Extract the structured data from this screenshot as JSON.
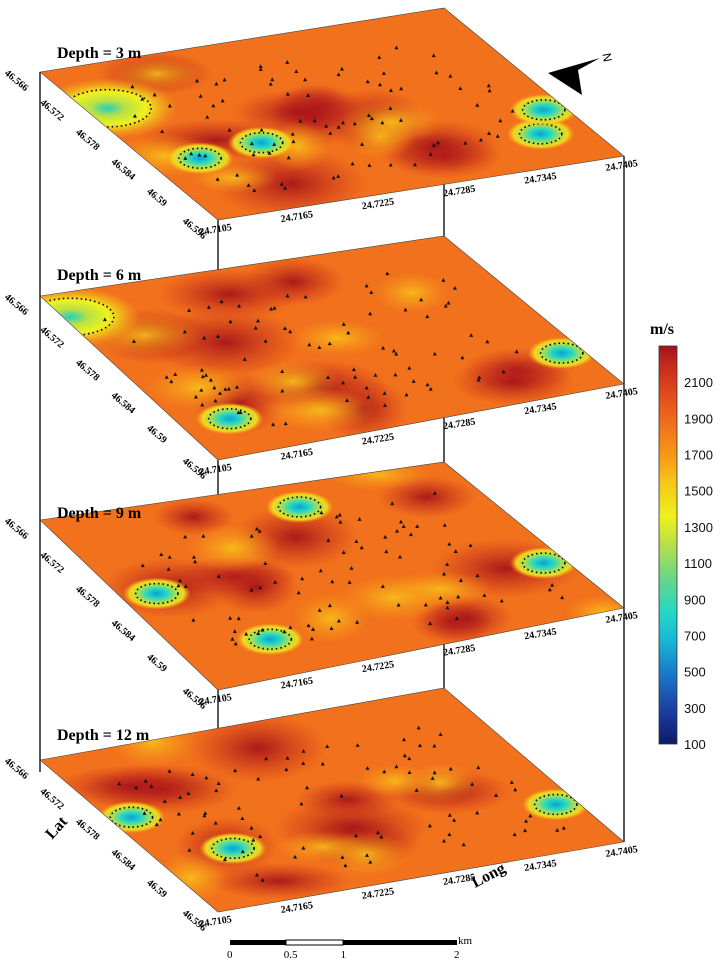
{
  "chart_data": {
    "type": "heatmap",
    "title": "",
    "variable_unit": "m/s",
    "colorbar": {
      "title": "m/s",
      "ticks": [
        2100,
        1900,
        1700,
        1500,
        1300,
        1100,
        900,
        700,
        500,
        300,
        100
      ],
      "range": [
        100,
        2300
      ],
      "colors": [
        "#0b1a6b",
        "#1b3c9e",
        "#1a74c8",
        "#19b6d6",
        "#22d8c6",
        "#64d68d",
        "#b5e04a",
        "#eef21c",
        "#f6c51a",
        "#f79b17",
        "#f2711c",
        "#e14a1c",
        "#c72a1c",
        "#a0141a"
      ]
    },
    "xlabel": "Long",
    "ylabel": "Lat",
    "x_ticks": [
      "24.7105",
      "24.7165",
      "24.7225",
      "24.7285",
      "24.7345",
      "24.7405"
    ],
    "y_ticks": [
      "46.566",
      "46.572",
      "46.578",
      "46.584",
      "46.59",
      "46.596"
    ],
    "layers": [
      {
        "label": "Depth = 3 m",
        "depth_m": 3,
        "low_velocity_zones": [
          {
            "x": 24.714,
            "y": 46.585,
            "v": 700
          },
          {
            "x": 24.719,
            "y": 46.584,
            "v": 800
          },
          {
            "x": 24.737,
            "y": 46.59,
            "v": 700
          },
          {
            "x": 24.739,
            "y": 46.586,
            "v": 600
          },
          {
            "x": 24.712,
            "y": 46.574,
            "v": 1300
          }
        ]
      },
      {
        "label": "Depth = 6 m",
        "depth_m": 6,
        "low_velocity_zones": [
          {
            "x": 24.714,
            "y": 46.59,
            "v": 800
          },
          {
            "x": 24.739,
            "y": 46.589,
            "v": 700
          },
          {
            "x": 24.711,
            "y": 46.57,
            "v": 1400
          }
        ]
      },
      {
        "label": "Depth = 9 m",
        "depth_m": 9,
        "low_velocity_zones": [
          {
            "x": 24.728,
            "y": 46.57,
            "v": 900
          },
          {
            "x": 24.713,
            "y": 46.58,
            "v": 900
          },
          {
            "x": 24.717,
            "y": 46.59,
            "v": 900
          },
          {
            "x": 24.739,
            "y": 46.586,
            "v": 800
          }
        ]
      },
      {
        "label": "Depth = 12 m",
        "depth_m": 12,
        "low_velocity_zones": [
          {
            "x": 24.712,
            "y": 46.578,
            "v": 800
          },
          {
            "x": 24.716,
            "y": 46.586,
            "v": 700
          },
          {
            "x": 24.739,
            "y": 46.588,
            "v": 700
          }
        ]
      }
    ],
    "scale_bar": {
      "unit": "km",
      "labels": [
        "0",
        "0.5",
        "1",
        "2"
      ],
      "values": [
        0,
        0.5,
        1,
        2
      ]
    },
    "north_arrow": "N"
  }
}
